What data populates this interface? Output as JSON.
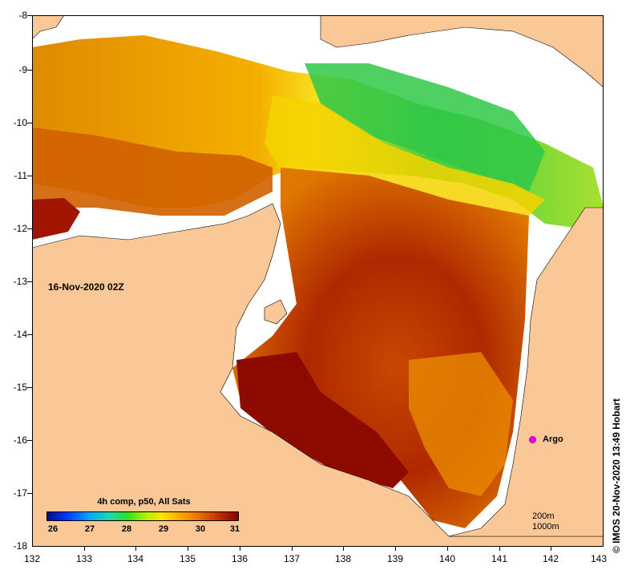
{
  "map": {
    "lat_ticks": [
      "-8",
      "-9",
      "-10",
      "-11",
      "-12",
      "-13",
      "-14",
      "-15",
      "-16",
      "-17",
      "-18"
    ],
    "lon_ticks": [
      "132",
      "133",
      "134",
      "135",
      "136",
      "137",
      "138",
      "139",
      "140",
      "141",
      "142",
      "143"
    ],
    "time_label": "16-Nov-2020 02Z",
    "argo_label": "Argo",
    "colors": {
      "land": "#fac897",
      "no_data": "#ffffff",
      "warm": "#8c0a00",
      "hot_mid": "#c84600",
      "orange": "#f09000",
      "yellow": "#f8e000",
      "green": "#30d040",
      "argo": "#ee00ee"
    }
  },
  "legend": {
    "title": "4h comp, p50, All Sats",
    "labels": [
      "26",
      "27",
      "28",
      "29",
      "30",
      "31"
    ]
  },
  "scale": {
    "line1": "200m",
    "line2": "1000m"
  },
  "credit": "© IMOS 20-Nov-2020 13:49 Hobart"
}
